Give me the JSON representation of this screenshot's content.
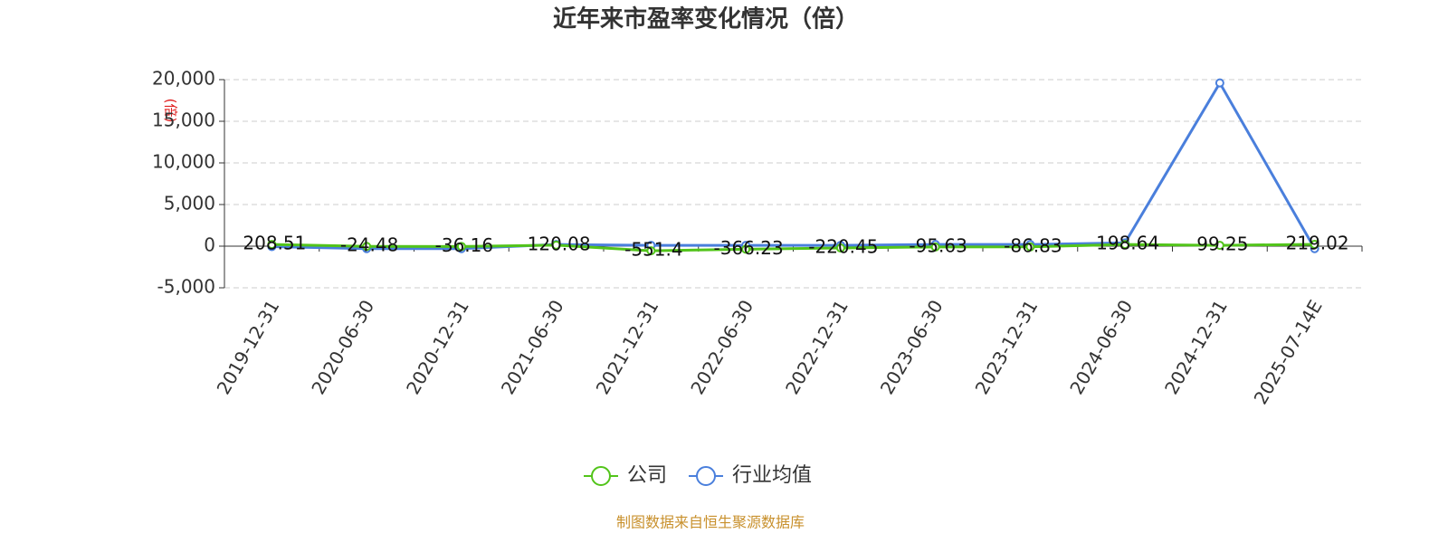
{
  "chart_data": {
    "type": "line",
    "title": "近年来市盈率变化情况（倍）",
    "y_label": "(倍)",
    "categories": [
      "2019-12-31",
      "2020-06-30",
      "2020-12-31",
      "2021-06-30",
      "2021-12-31",
      "2022-06-30",
      "2022-12-31",
      "2023-06-30",
      "2023-12-31",
      "2024-06-30",
      "2024-12-31",
      "2025-07-14E"
    ],
    "series": [
      {
        "name": "公司",
        "color": "#52c41a",
        "values": [
          208.51,
          -24.48,
          -36.16,
          120.08,
          -551.4,
          -366.23,
          -220.45,
          -95.63,
          -86.83,
          198.64,
          99.25,
          219.02
        ]
      },
      {
        "name": "行业均值",
        "color": "#4a7fdc",
        "values": [
          -50,
          -300,
          -300,
          200,
          100,
          100,
          100,
          200,
          200,
          400,
          19600,
          -300
        ]
      }
    ],
    "ylim": [
      -5000,
      20000
    ],
    "yticks": [
      {
        "value": -5000,
        "label": "-5,000"
      },
      0,
      {
        "value": 5000,
        "label": "5,000"
      },
      {
        "value": 10000,
        "label": "10,000"
      },
      {
        "value": 15000,
        "label": "15,000"
      },
      {
        "value": 20000,
        "label": "20,000"
      }
    ],
    "grid": true,
    "legend": "bottom",
    "source": "制图数据来自恒生聚源数据库"
  }
}
